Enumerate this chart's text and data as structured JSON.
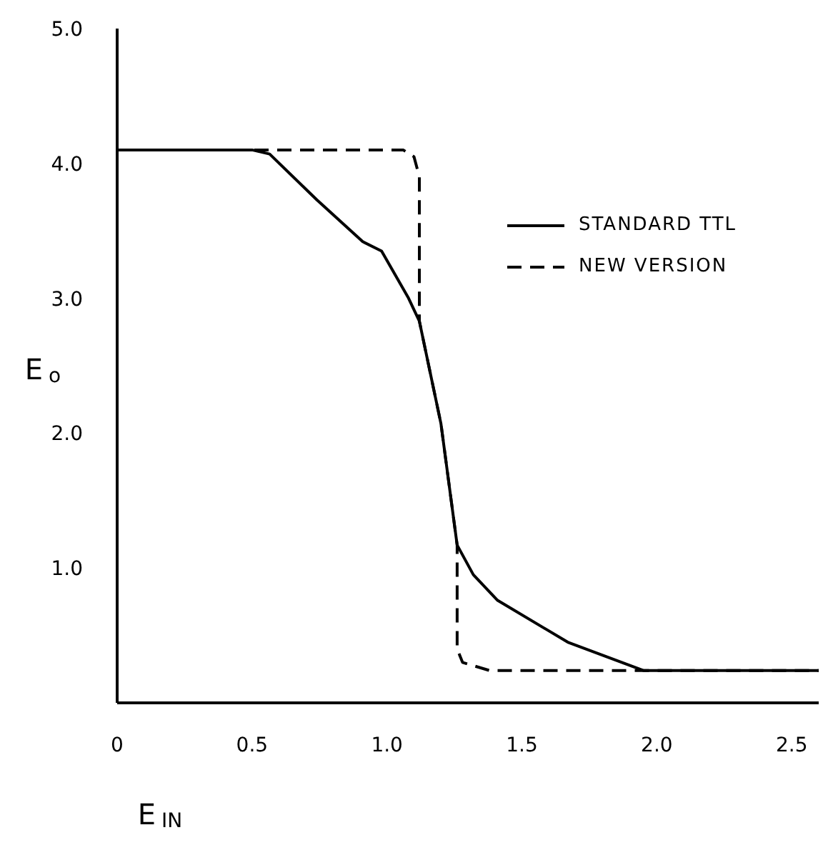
{
  "chart_data": {
    "type": "line",
    "xlabel": "E$_{IN}$",
    "ylabel": "E$_{o}$",
    "xlim": [
      0,
      2.6
    ],
    "xticks": [
      0,
      0.5,
      {
        "value": 1,
        "label": "1.0"
      },
      1.5,
      {
        "value": 2,
        "label": "2.0"
      },
      2.5
    ],
    "ylim": [
      0,
      5
    ],
    "yticks": [
      {
        "value": 1,
        "label": "1.0"
      },
      {
        "value": 2,
        "label": "2.0"
      },
      {
        "value": 3,
        "label": "3.0"
      },
      {
        "value": 4,
        "label": "4.0"
      },
      {
        "value": 5,
        "label": "5.0"
      }
    ],
    "legend": "top right",
    "marker": "none",
    "series": [
      {
        "name": "STANDARD TTL",
        "color": "#000000",
        "line_style": "solid",
        "x": [
          0,
          0.5,
          0.565,
          0.74,
          0.91,
          0.98,
          1.08,
          1.12,
          1.2,
          1.26,
          1.32,
          1.41,
          1.67,
          1.95,
          2.6
        ],
        "values": [
          4.1,
          4.1,
          4.07,
          3.73,
          3.42,
          3.35,
          3.0,
          2.83,
          2.07,
          1.17,
          0.95,
          0.76,
          0.45,
          0.24,
          0.24
        ]
      },
      {
        "name": "NEW VERSION",
        "color": "#000000",
        "line_style": "dashed",
        "x": [
          0,
          1.06,
          1.1,
          1.12,
          1.12,
          1.2,
          1.26,
          1.26,
          1.28,
          1.38,
          2.6
        ],
        "values": [
          4.1,
          4.1,
          4.05,
          3.9,
          2.83,
          2.07,
          1.17,
          0.4,
          0.3,
          0.24,
          0.24
        ]
      }
    ]
  }
}
